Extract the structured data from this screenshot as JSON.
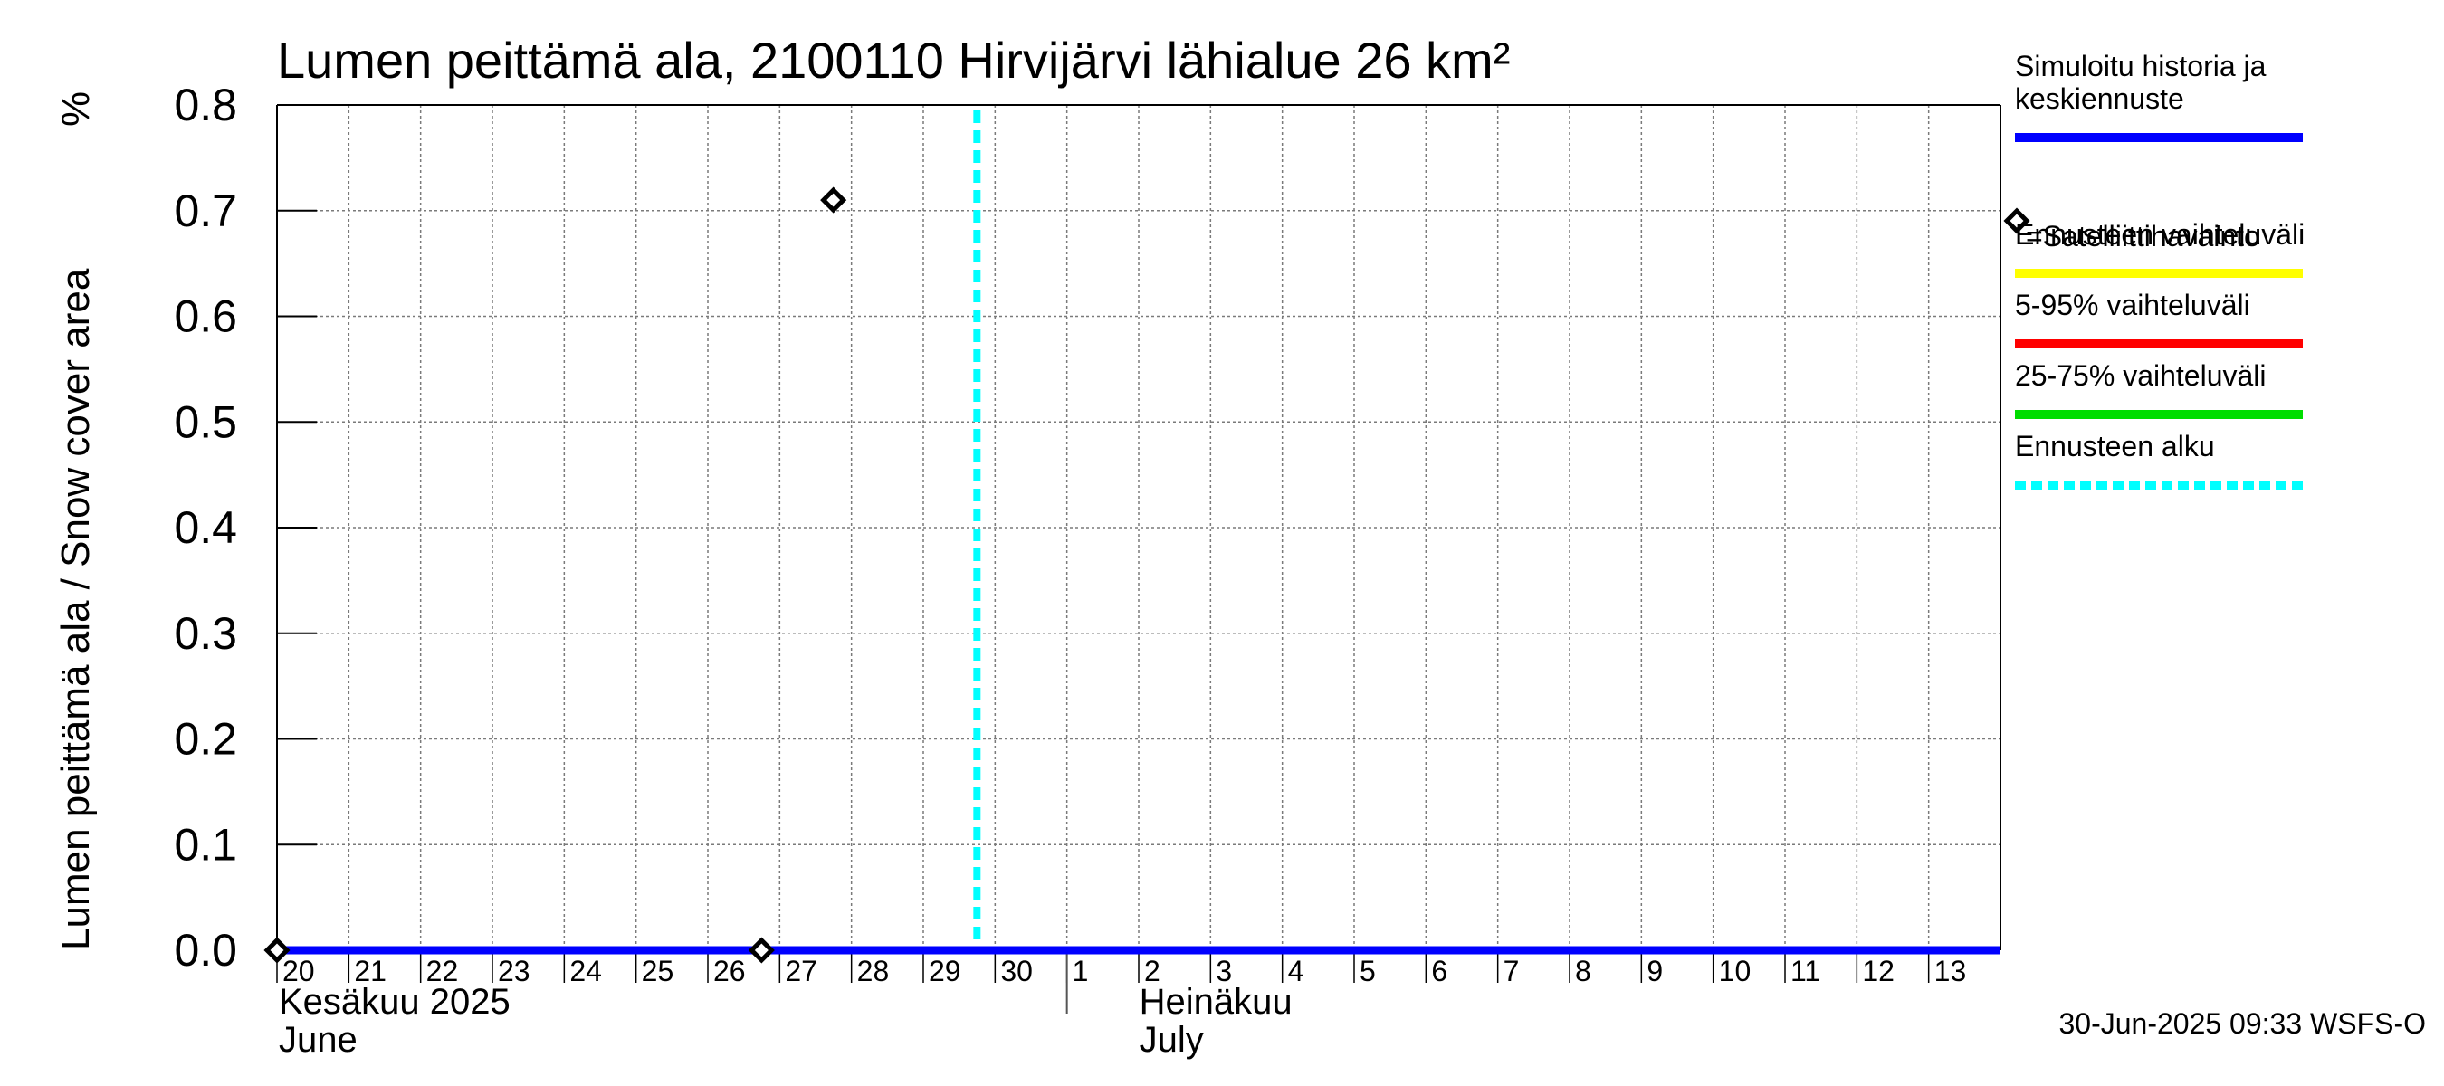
{
  "chart_data": {
    "type": "line",
    "title": "Lumen peittämä ala, 2100110 Hirvijärvi lähialue 26 km²",
    "ylabel": "Lumen peittämä ala / Snow cover area",
    "yunit": "%",
    "ylim": [
      0,
      0.8
    ],
    "yticks": [
      0.0,
      0.1,
      0.2,
      0.3,
      0.4,
      0.5,
      0.6,
      0.7,
      0.8
    ],
    "ytick_labels": [
      "0.0",
      "0.1",
      "0.2",
      "0.3",
      "0.4",
      "0.5",
      "0.6",
      "0.7",
      "0.8"
    ],
    "xlim": [
      "2025-06-20",
      "2025-07-14"
    ],
    "x_days": [
      "20",
      "21",
      "22",
      "23",
      "24",
      "25",
      "26",
      "27",
      "28",
      "29",
      "30",
      "1",
      "2",
      "3",
      "4",
      "5",
      "6",
      "7",
      "8",
      "9",
      "10",
      "11",
      "12",
      "13"
    ],
    "x_day_dates": [
      "2025-06-20",
      "2025-06-21",
      "2025-06-22",
      "2025-06-23",
      "2025-06-24",
      "2025-06-25",
      "2025-06-26",
      "2025-06-27",
      "2025-06-28",
      "2025-06-29",
      "2025-06-30",
      "2025-07-01",
      "2025-07-02",
      "2025-07-03",
      "2025-07-04",
      "2025-07-05",
      "2025-07-06",
      "2025-07-07",
      "2025-07-08",
      "2025-07-09",
      "2025-07-10",
      "2025-07-11",
      "2025-07-12",
      "2025-07-13"
    ],
    "month_labels": [
      {
        "fi": "Kesäkuu  2025",
        "en": "June",
        "date": "2025-06-20"
      },
      {
        "fi": "Heinäkuu",
        "en": "July",
        "date": "2025-07-01"
      }
    ],
    "grid": true,
    "legend_position": "right",
    "series": [
      {
        "name": "Simuloitu historia ja keskiennuste",
        "color": "#0000ff",
        "style": "solid",
        "x": [
          "2025-06-20",
          "2025-07-14"
        ],
        "y": [
          0.0,
          0.0
        ]
      },
      {
        "name": "=Satelliittihavainto",
        "color": "#000000",
        "style": "diamond-marker",
        "x": [
          "2025-06-20",
          "2025-06-27",
          "2025-06-28"
        ],
        "y": [
          0.0,
          0.0,
          0.71
        ]
      }
    ],
    "forecast_start": "2025-06-30",
    "legend": [
      {
        "label": "Simuloitu historia ja keskiennuste",
        "lines": [
          "Simuloitu historia ja",
          "keskiennuste"
        ],
        "color": "#0000ff",
        "style": "solid"
      },
      {
        "label": "=Satelliittihavainto",
        "lines": [
          "=Satelliittihavainto"
        ],
        "color": "#000000",
        "style": "diamond"
      },
      {
        "label": "Ennusteen vaihteluväli",
        "lines": [
          "Ennusteen vaihteluväli"
        ],
        "color": "#ffff00",
        "style": "solid"
      },
      {
        "label": "5-95% vaihteluväli",
        "lines": [
          "5-95% vaihteluväli"
        ],
        "color": "#ff0000",
        "style": "solid"
      },
      {
        "label": "25-75% vaihteluväli",
        "lines": [
          "25-75% vaihteluväli"
        ],
        "color": "#00dd00",
        "style": "solid"
      },
      {
        "label": "Ennusteen alku",
        "lines": [
          "Ennusteen alku"
        ],
        "color": "#00ffff",
        "style": "dashed"
      }
    ],
    "timestamp": "30-Jun-2025 09:33 WSFS-O"
  }
}
